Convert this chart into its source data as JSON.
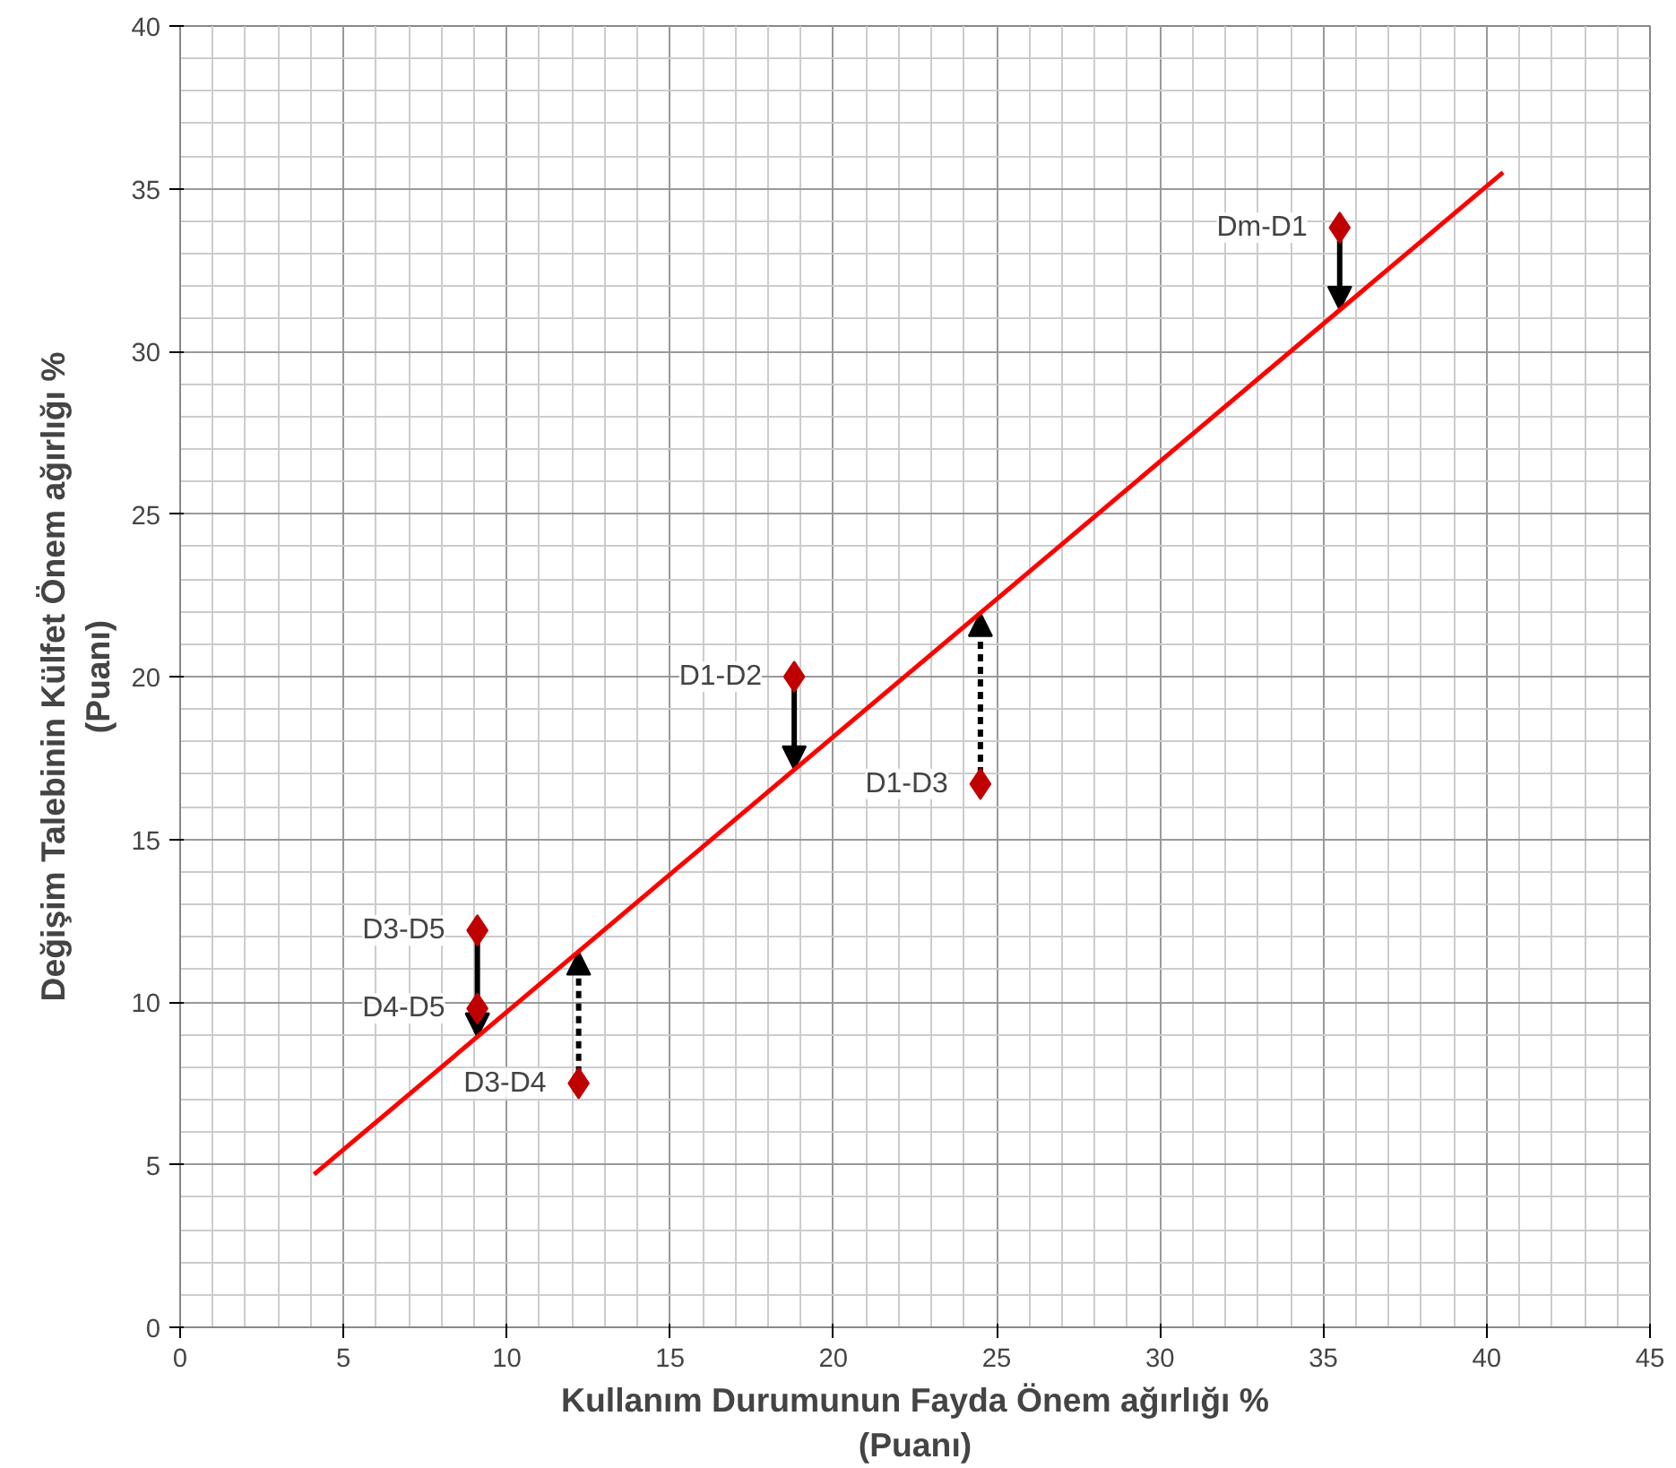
{
  "chart_data": {
    "type": "scatter",
    "xlabel": "Kullanım Durumunun Fayda Önem ağırlığı %\n(Puanı)",
    "ylabel": "Değişim Talebinin Külfet Önem ağırlığı %\n(Puanı)",
    "x": [
      35.5,
      18.8,
      24.5,
      9.1,
      9.1,
      12.2
    ],
    "series": [
      {
        "color": "#c00000",
        "marker": "diamond",
        "values": [
          33.8,
          20.0,
          16.7,
          12.2,
          9.8,
          7.5
        ]
      },
      {
        "type": "line",
        "color": "#ff0000",
        "x": [
          4.1,
          40.5
        ],
        "values": [
          4.7,
          35.5
        ]
      }
    ],
    "annotations": [
      {
        "text": "Dm-D1",
        "x": 35.5,
        "y": 33.8
      },
      {
        "text": "D1-D2",
        "x": 18.8,
        "y": 20.0
      },
      {
        "text": "D1-D3",
        "x": 24.5,
        "y": 16.7
      },
      {
        "text": "D3-D5",
        "x": 9.1,
        "y": 12.2
      },
      {
        "text": "D4-D5",
        "x": 9.1,
        "y": 9.8
      },
      {
        "text": "D3-D4",
        "x": 12.2,
        "y": 7.5
      }
    ],
    "xlim": [
      0,
      45
    ],
    "ylim": [
      0,
      40
    ],
    "xticks": [
      0,
      5,
      10,
      15,
      20,
      25,
      30,
      35,
      40,
      45
    ],
    "yticks": [
      0,
      5,
      10,
      15,
      20,
      25,
      30,
      35,
      40
    ],
    "grid": true
  }
}
